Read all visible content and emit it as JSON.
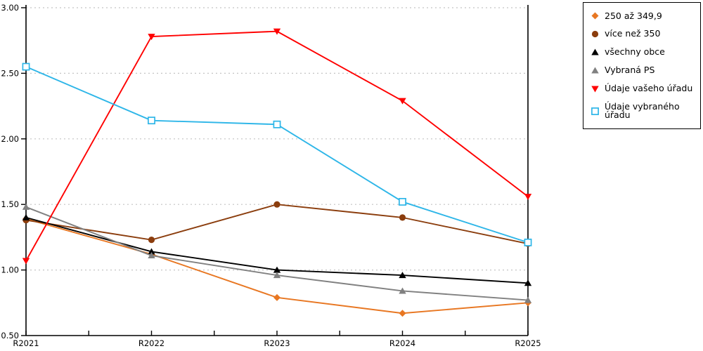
{
  "chart_data": {
    "type": "line",
    "title": "",
    "xlabel": "",
    "ylabel": "",
    "categories": [
      "R2021",
      "R2022",
      "R2023",
      "R2024",
      "R2025"
    ],
    "series": [
      {
        "name": "250 až 349,9",
        "marker": "diamond",
        "color": "#E87722",
        "values": [
          1.39,
          1.12,
          0.79,
          0.67,
          0.75
        ]
      },
      {
        "name": "více než 350",
        "marker": "circle",
        "color": "#8B3D0D",
        "values": [
          1.38,
          1.23,
          1.5,
          1.4,
          1.2
        ]
      },
      {
        "name": "všechny obce",
        "marker": "triangle-up",
        "color": "#000000",
        "values": [
          1.4,
          1.14,
          1.0,
          0.96,
          0.9
        ]
      },
      {
        "name": "Vybraná PS",
        "marker": "triangle-up",
        "color": "#808080",
        "values": [
          1.48,
          1.11,
          0.96,
          0.84,
          0.77
        ]
      },
      {
        "name": "Údaje vašeho úřadu",
        "marker": "triangle-down",
        "color": "#FF0000",
        "values": [
          1.07,
          2.78,
          2.82,
          2.29,
          1.56
        ]
      },
      {
        "name": "Údaje vybraného úřadu",
        "marker": "square-open",
        "color": "#2EB6E8",
        "values": [
          2.55,
          2.14,
          2.11,
          1.52,
          1.21
        ]
      }
    ],
    "ylim": [
      0.5,
      3.0
    ],
    "ytick_step": 0.5,
    "ytick_labels": [
      "0.50",
      "1.00",
      "1.50",
      "2.00",
      "2.50",
      "3.00"
    ],
    "x_minor_ticks_per_interval": 1,
    "grid": "horizontal-dotted",
    "legend_position": "top-right"
  },
  "colors": {
    "background": "#FFFFFF",
    "axis": "#000000",
    "grid": "#C4C4C4",
    "text": "#000000"
  }
}
